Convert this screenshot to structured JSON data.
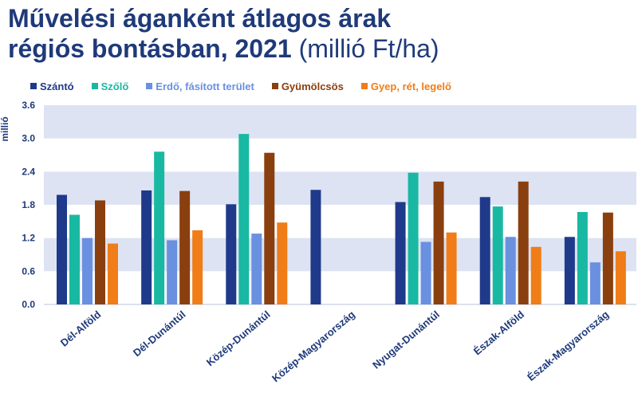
{
  "title": {
    "line1": "Művelési áganként átlagos árak",
    "line2_bold": "régiós bontásban, 2021",
    "line2_unit": " (millió Ft/ha)"
  },
  "colors": {
    "title": "#1f3a7a",
    "band": "#dde3f3",
    "axis_text": "#1f3a7a"
  },
  "chart_data": {
    "type": "bar",
    "ylabel": "millió",
    "ylim": [
      0,
      3.6
    ],
    "yticks": [
      "0.0",
      "0.6",
      "1.2",
      "1.8",
      "2.4",
      "3.0",
      "3.6"
    ],
    "categories": [
      "Dél-Alföld",
      "Dél-Dunántúl",
      "Közép-Dunántúl",
      "Közép-Magyarország",
      "Nyugat-Dunántúl",
      "Észak-Alföld",
      "Észak-Magyarország"
    ],
    "legend_position": "top",
    "series": [
      {
        "name": "Szántó",
        "color": "#1f3a8a",
        "values": [
          1.98,
          2.06,
          1.81,
          2.07,
          1.85,
          1.94,
          1.22
        ]
      },
      {
        "name": "Szőlő",
        "color": "#19b8a2",
        "values": [
          1.62,
          2.76,
          3.08,
          null,
          2.38,
          1.77,
          1.67
        ]
      },
      {
        "name": "Erdő, fásított terület",
        "color": "#6a90e0",
        "values": [
          1.2,
          1.16,
          1.28,
          null,
          1.13,
          1.22,
          0.76
        ]
      },
      {
        "name": "Gyümölcsös",
        "color": "#8a3f0f",
        "values": [
          1.88,
          2.05,
          2.74,
          null,
          2.22,
          2.22,
          1.66
        ]
      },
      {
        "name": "Gyep, rét, legelő",
        "color": "#f07d18",
        "values": [
          1.1,
          1.34,
          1.48,
          null,
          1.3,
          1.04,
          0.96
        ]
      }
    ]
  }
}
